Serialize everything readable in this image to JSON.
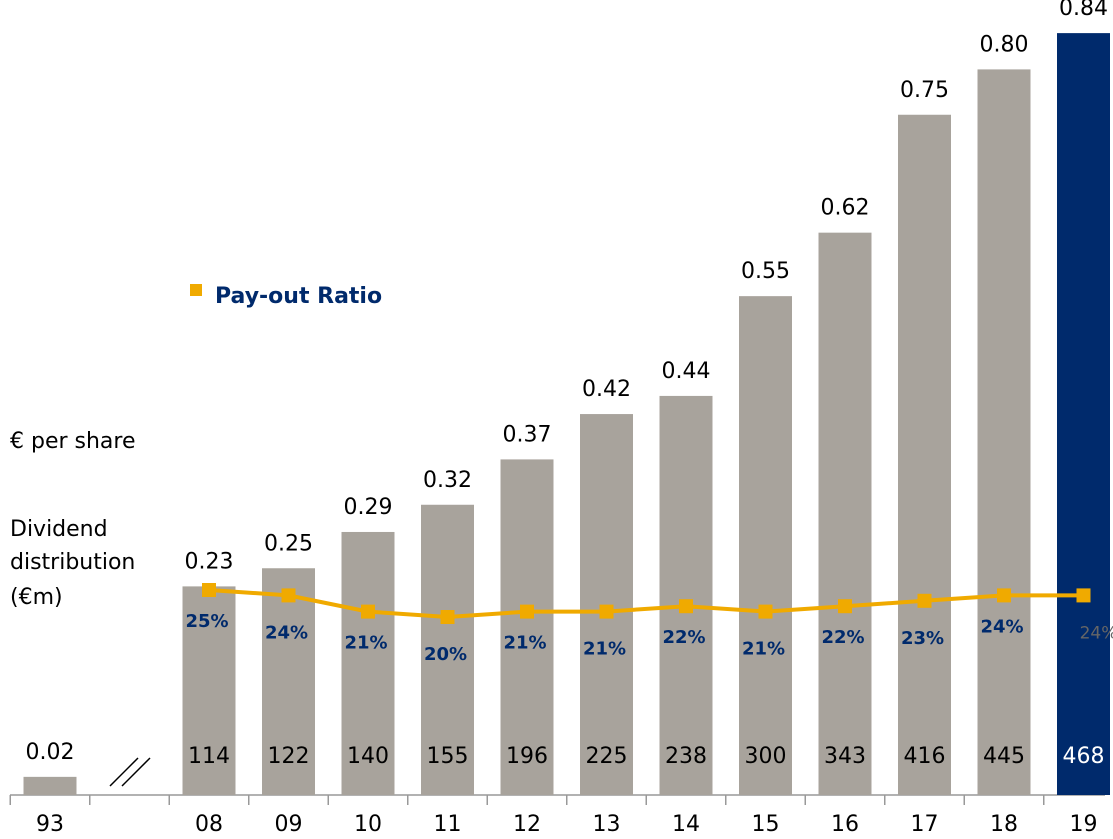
{
  "chart_data": {
    "type": "bar",
    "categories": [
      "93",
      null,
      "08",
      "09",
      "10",
      "11",
      "12",
      "13",
      "14",
      "15",
      "16",
      "17",
      "18",
      "19"
    ],
    "series": [
      {
        "name": "€ per share",
        "color": "#a8a39c",
        "highlight_color": "#002a6c",
        "values": [
          0.02,
          null,
          0.23,
          0.25,
          0.29,
          0.32,
          0.37,
          0.42,
          0.44,
          0.55,
          0.62,
          0.75,
          0.8,
          0.84
        ],
        "value_labels": [
          "0.02",
          null,
          "0.23",
          "0.25",
          "0.29",
          "0.32",
          "0.37",
          "0.42",
          "0.44",
          "0.55",
          "0.62",
          "0.75",
          "0.80",
          "0.84"
        ]
      },
      {
        "name_lines": [
          "Dividend",
          "distribution",
          "(€m)"
        ],
        "values": [
          null,
          null,
          114,
          122,
          140,
          155,
          196,
          225,
          238,
          300,
          343,
          416,
          445,
          468
        ]
      },
      {
        "name": "Pay-out Ratio",
        "type": "line",
        "color": "#f0aa00",
        "label_color": "#002a6c",
        "values": [
          null,
          null,
          25,
          24,
          21,
          20,
          21,
          21,
          22,
          21,
          22,
          23,
          24,
          24
        ],
        "value_labels": [
          null,
          null,
          "25%",
          "24%",
          "21%",
          "20%",
          "21%",
          "21%",
          "22%",
          "21%",
          "22%",
          "23%",
          "24%",
          "24%"
        ]
      }
    ]
  }
}
